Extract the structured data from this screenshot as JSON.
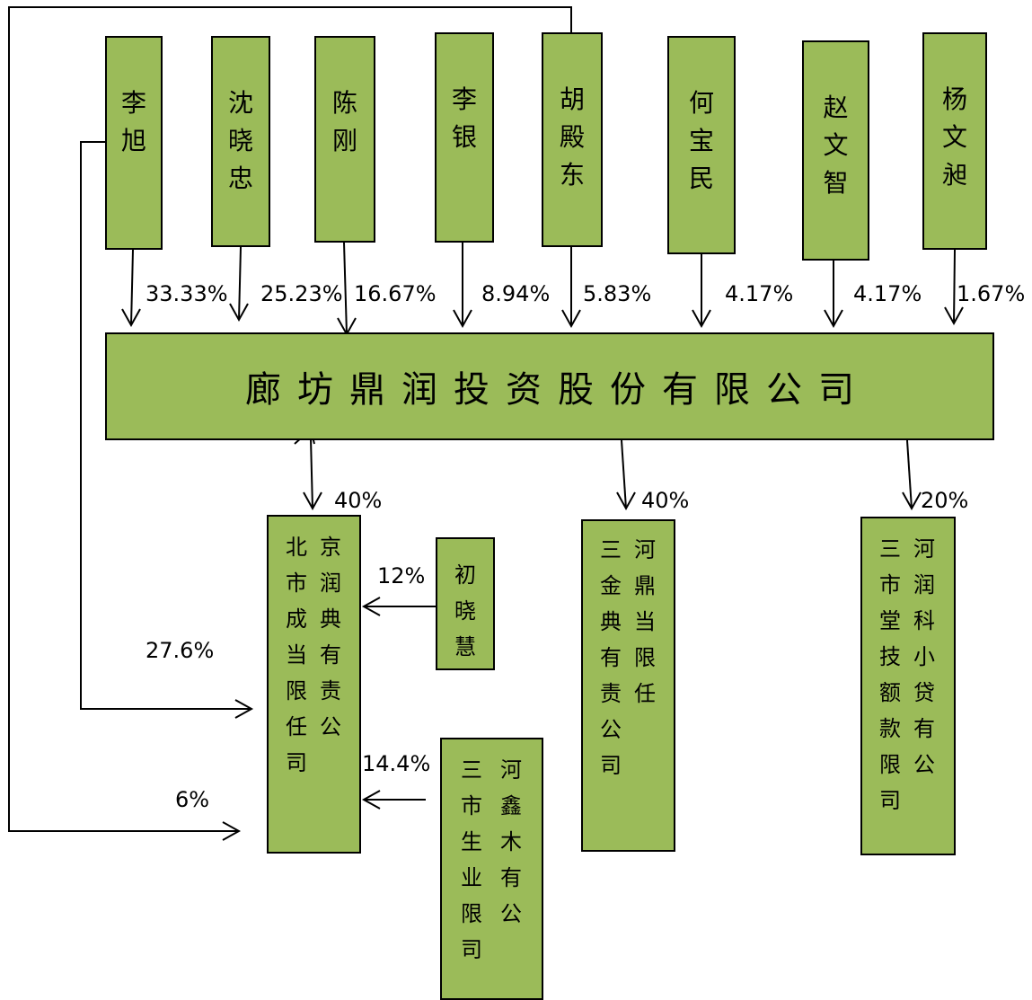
{
  "shareholders": [
    {
      "name": "李旭",
      "pct": "33.33%"
    },
    {
      "name": "沈晓忠",
      "pct": "25.23%"
    },
    {
      "name": "陈刚",
      "pct": "16.67%"
    },
    {
      "name": "李银",
      "pct": "8.94%"
    },
    {
      "name": "胡殿东",
      "pct": "5.83%"
    },
    {
      "name": "何宝民",
      "pct": "4.17%"
    },
    {
      "name": "赵文智",
      "pct": "4.17%"
    },
    {
      "name": "杨文昶",
      "pct": "1.67%"
    }
  ],
  "main_company": "廊坊鼎润投资股份有限公司",
  "subsidiaries": [
    {
      "col1": "北市成当限任司",
      "col2": "京润典有责公",
      "pct": "40%"
    },
    {
      "col1": "三金典有责公司",
      "col2": "河鼎当限任",
      "pct": "40%"
    },
    {
      "col1": "三市堂技额款限司",
      "col2": "河润科小贷有公",
      "pct": "20%"
    }
  ],
  "other_holders": [
    {
      "name": "初晓慧",
      "pct": "12%"
    },
    {
      "col1": "三市生业限司",
      "col2": "河鑫木有公",
      "pct": "14.4%"
    }
  ],
  "extra_links": {
    "li_xu_to_beijing": "27.6%",
    "chen_gang_to_beijing": "6%"
  }
}
